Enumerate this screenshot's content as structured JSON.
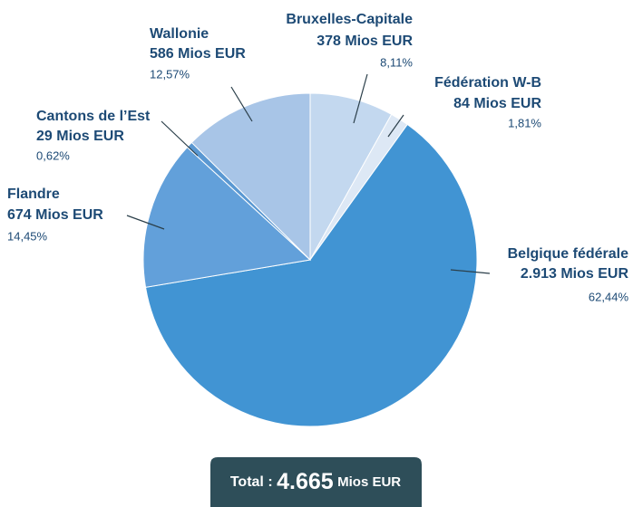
{
  "chart_data": {
    "type": "pie",
    "categories": [
      "Bruxelles-Capitale",
      "Fédération W-B",
      "Belgique fédérale",
      "Flandre",
      "Cantons de l’Est",
      "Wallonie"
    ],
    "values": [
      378,
      84,
      2913,
      674,
      29,
      586
    ],
    "value_labels": [
      "378 Mios EUR",
      "84 Mios EUR",
      "2.913 Mios EUR",
      "674 Mios EUR",
      "29 Mios EUR",
      "586 Mios EUR"
    ],
    "percentages": [
      8.11,
      1.81,
      62.44,
      14.45,
      0.62,
      12.57
    ],
    "percentage_labels": [
      "8,11%",
      "1,81%",
      "62,44%",
      "14,45%",
      "0,62%",
      "12,57%"
    ],
    "colors": [
      "#c3d8ef",
      "#dde8f5",
      "#4194d3",
      "#62a0da",
      "#5a98d2",
      "#a8c5e7"
    ],
    "total_prefix": "Total :",
    "total": {
      "value": 4665,
      "label": "4.665"
    },
    "total_unit": "Mios EUR"
  }
}
